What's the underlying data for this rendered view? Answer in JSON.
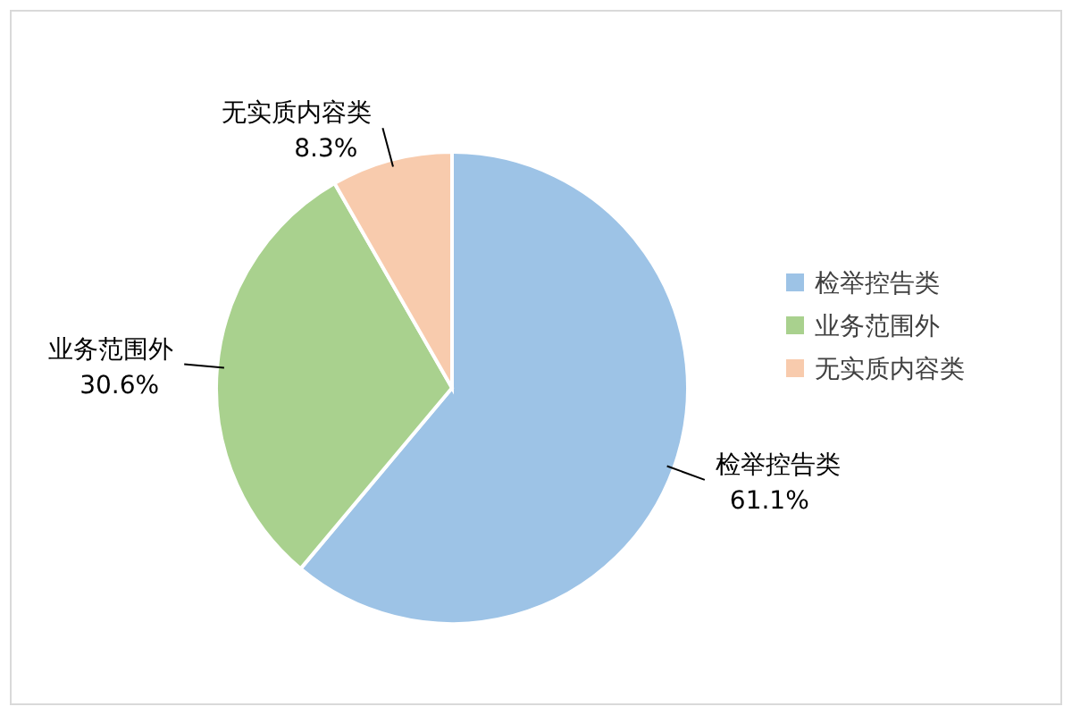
{
  "chart_data": {
    "type": "pie",
    "categories": [
      "检举控告类",
      "业务范围外",
      "无实质内容类"
    ],
    "values": [
      61.1,
      30.6,
      8.3
    ],
    "colors": [
      "#9dc3e6",
      "#a9d18e",
      "#f8cbad"
    ],
    "value_labels": [
      "61.1%",
      "30.6%",
      "8.3%"
    ],
    "legend": "right"
  }
}
